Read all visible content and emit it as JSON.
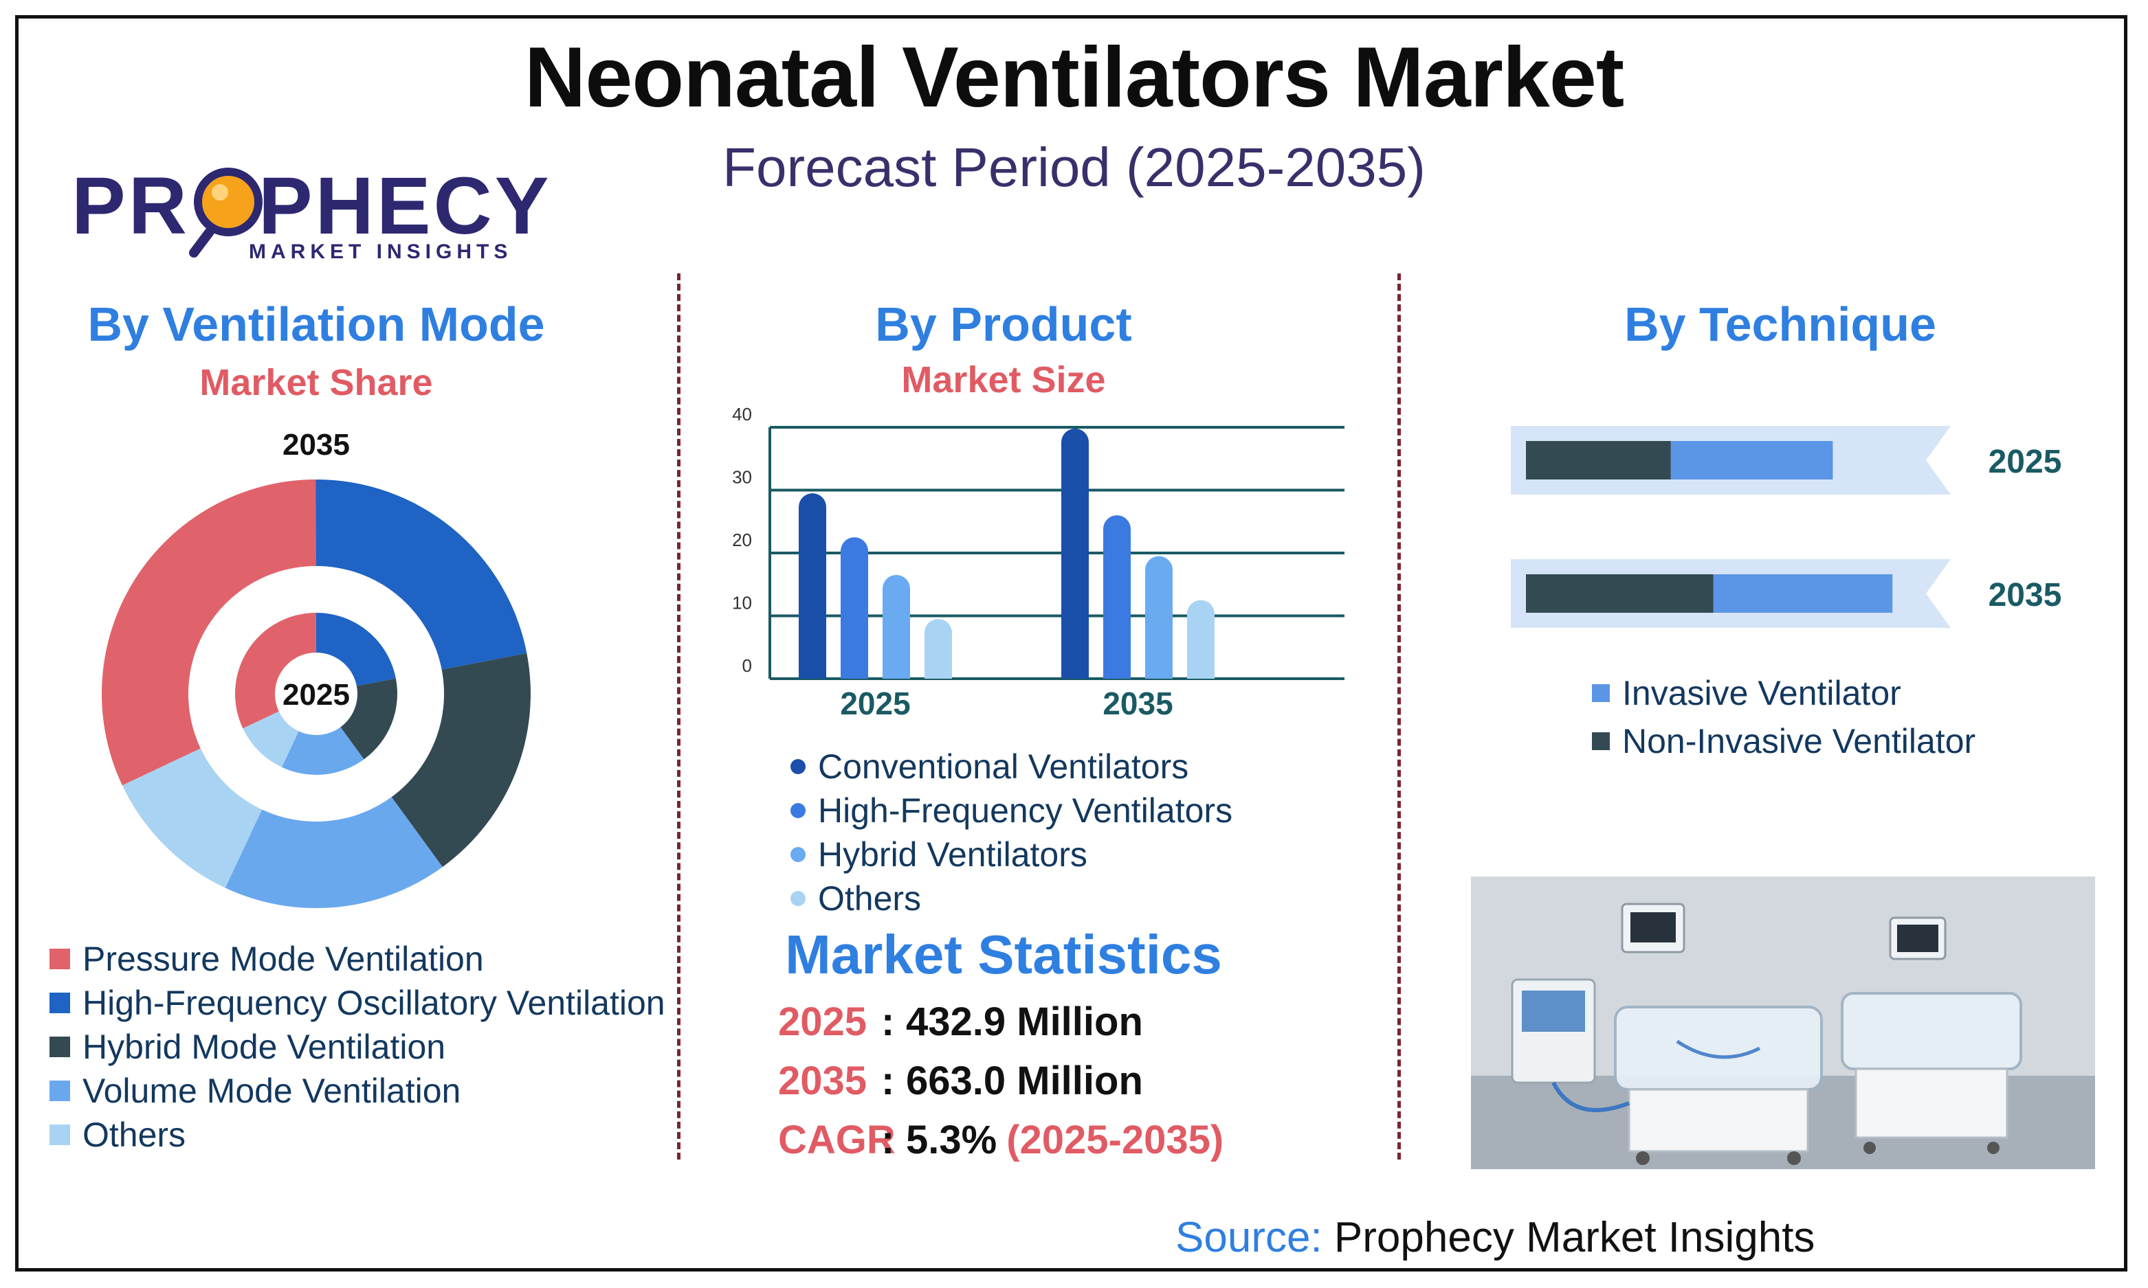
{
  "header": {
    "title": "Neonatal Ventilators Market",
    "subtitle": "Forecast Period (2025-2035)"
  },
  "logo": {
    "brand_start": "PR",
    "brand_end": "PHECY",
    "tagline": "MARKET INSIGHTS"
  },
  "sections": {
    "mode": {
      "title": "By Ventilation Mode",
      "subtitle": "Market Share"
    },
    "product": {
      "title": "By Product",
      "subtitle": "Market Size"
    },
    "technique": {
      "title": "By Technique"
    }
  },
  "colors": {
    "pressure": "#e0636b",
    "hfov": "#1f63c4",
    "hybrid": "#344a52",
    "volume": "#6aa8ee",
    "others": "#a9d3f3",
    "conventional": "#1a4faa",
    "high_frequency": "#3b7ae0",
    "hybrid_vent": "#6aaaf0",
    "others_vent": "#a9d3f3",
    "invasive": "#5b95e6",
    "non_invasive": "#344a52",
    "track": "#d5e5f7"
  },
  "chart_data": [
    {
      "type": "pie",
      "name": "By Ventilation Mode - Market Share",
      "rings": [
        {
          "label": "2035",
          "slices": [
            {
              "name": "Pressure Mode Ventilation",
              "value": 32
            },
            {
              "name": "High-Frequency Oscillatory Ventilation",
              "value": 22
            },
            {
              "name": "Hybrid Mode Ventilation",
              "value": 18
            },
            {
              "name": "Volume Mode Ventilation",
              "value": 17
            },
            {
              "name": "Others",
              "value": 11
            }
          ]
        },
        {
          "label": "2025",
          "slices": [
            {
              "name": "Pressure Mode Ventilation",
              "value": 32
            },
            {
              "name": "High-Frequency Oscillatory Ventilation",
              "value": 22
            },
            {
              "name": "Hybrid Mode Ventilation",
              "value": 18
            },
            {
              "name": "Volume Mode Ventilation",
              "value": 17
            },
            {
              "name": "Others",
              "value": 11
            }
          ]
        }
      ],
      "legend": [
        "Pressure Mode Ventilation",
        "High-Frequency Oscillatory Ventilation",
        "Hybrid Mode Ventilation",
        "Volume Mode Ventilation",
        "Others"
      ]
    },
    {
      "type": "bar",
      "name": "By Product - Market Size",
      "categories": [
        "2025",
        "2035"
      ],
      "series": [
        {
          "name": "Conventional Ventilators",
          "values": [
            29.5,
            39.8
          ]
        },
        {
          "name": "High-Frequency Ventilators",
          "values": [
            22.5,
            26
          ]
        },
        {
          "name": "Hybrid Ventilators",
          "values": [
            16.5,
            19.5
          ]
        },
        {
          "name": "Others",
          "values": [
            9.5,
            12.5
          ]
        }
      ],
      "yticks": [
        "0",
        "10",
        "20",
        "30",
        "40"
      ],
      "ylim": [
        0,
        40
      ],
      "grid": true
    },
    {
      "type": "bar",
      "orientation": "horizontal-stacked",
      "name": "By Technique",
      "categories": [
        "2025",
        "2035"
      ],
      "series": [
        {
          "name": "Non-Invasive Ventilator",
          "values": [
            34,
            44
          ]
        },
        {
          "name": "Invasive Ventilator",
          "values": [
            38,
            42
          ]
        }
      ],
      "legend": [
        "Invasive Ventilator",
        "Non-Invasive Ventilator"
      ]
    }
  ],
  "stats": {
    "title": "Market Statistics",
    "rows": [
      {
        "key": "2025",
        "sep": ":",
        "value": "432.9 Million",
        "extra": ""
      },
      {
        "key": "2035",
        "sep": ":",
        "value": "663.0 Million",
        "extra": ""
      },
      {
        "key": "CAGR",
        "sep": ":",
        "value": "5.3%",
        "extra": "(2025-2035)"
      }
    ]
  },
  "source": {
    "label": "Source:",
    "text": "Prophecy Market Insights"
  }
}
